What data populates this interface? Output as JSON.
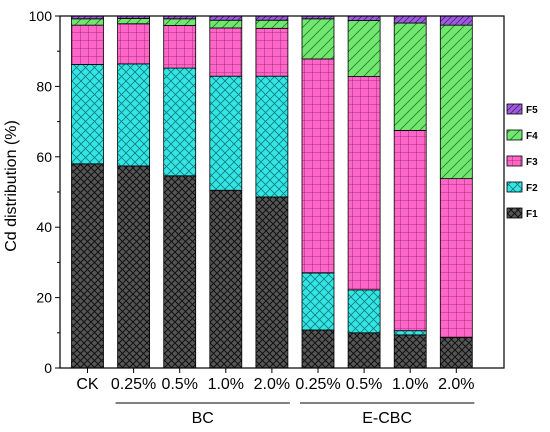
{
  "chart_data": {
    "type": "bar",
    "stacked": true,
    "categories": [
      "CK",
      "0.25%",
      "0.5%",
      "1.0%",
      "2.0%",
      "0.25%",
      "0.5%",
      "1.0%",
      "2.0%"
    ],
    "groups": [
      {
        "label": "BC",
        "category_indices": [
          1,
          2,
          3,
          4
        ]
      },
      {
        "label": "E-CBC",
        "category_indices": [
          5,
          6,
          7,
          8
        ]
      }
    ],
    "ylabel": "Cd distribution (%)",
    "xlabel": "",
    "ylim": [
      0,
      100
    ],
    "yticks": [
      20,
      40,
      60,
      80,
      100
    ],
    "legend_position": "right",
    "series": [
      {
        "name": "F1",
        "color": "#555555",
        "pattern": "crosshatch-dark",
        "values": [
          58,
          57.4,
          54.6,
          50.5,
          48.6,
          10.8,
          10,
          9.4,
          8.7
        ]
      },
      {
        "name": "F2",
        "color": "#33e6e6",
        "pattern": "crosshatch",
        "values": [
          28.2,
          29,
          30.6,
          32.4,
          34.3,
          16.2,
          12.2,
          1.2,
          0
        ]
      },
      {
        "name": "F3",
        "color": "#ff66c8",
        "pattern": "grid",
        "values": [
          11.2,
          11.4,
          12.1,
          13.7,
          13.6,
          60.8,
          60.6,
          56.9,
          45.1
        ]
      },
      {
        "name": "F4",
        "color": "#70e870",
        "pattern": "diagonal",
        "values": [
          1.8,
          1.5,
          1.9,
          2.2,
          2.3,
          11.4,
          15.9,
          30.5,
          43.6
        ]
      },
      {
        "name": "F5",
        "color": "#a05ce0",
        "pattern": "diagonal",
        "values": [
          0.8,
          0.7,
          0.8,
          1.2,
          1.2,
          0.8,
          1.3,
          2,
          2.6
        ]
      }
    ]
  }
}
